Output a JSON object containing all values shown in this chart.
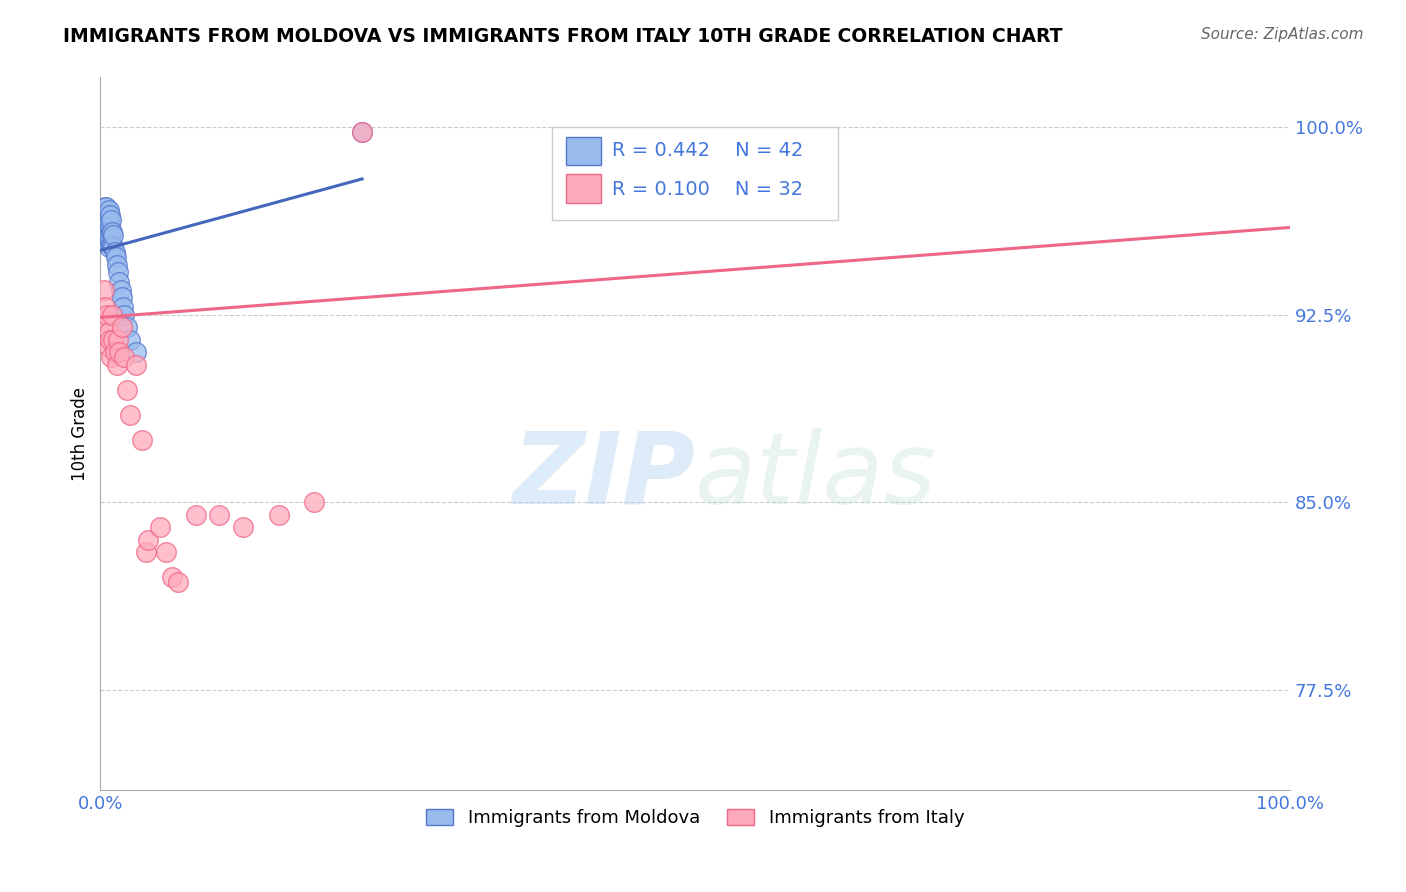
{
  "title": "IMMIGRANTS FROM MOLDOVA VS IMMIGRANTS FROM ITALY 10TH GRADE CORRELATION CHART",
  "source": "Source: ZipAtlas.com",
  "ylabel": "10th Grade",
  "xlim": [
    0.0,
    1.0
  ],
  "ylim": [
    0.735,
    1.02
  ],
  "yticks": [
    0.775,
    0.85,
    0.925,
    1.0
  ],
  "ytick_labels": [
    "77.5%",
    "85.0%",
    "92.5%",
    "100.0%"
  ],
  "legend_r_moldova": "R = 0.442",
  "legend_n_moldova": "N = 42",
  "legend_r_italy": "R = 0.100",
  "legend_n_italy": "N = 32",
  "legend_label_moldova": "Immigrants from Moldova",
  "legend_label_italy": "Immigrants from Italy",
  "color_moldova": "#99BBEE",
  "color_italy": "#FFAABB",
  "color_moldova_edge": "#5577CC",
  "color_italy_edge": "#EE6688",
  "color_moldova_line": "#4466BB",
  "color_italy_line": "#EE6688",
  "watermark_zip": "ZIP",
  "watermark_atlas": "atlas",
  "tick_color": "#4477DD",
  "moldova_x": [
    0.002,
    0.002,
    0.003,
    0.003,
    0.003,
    0.004,
    0.004,
    0.004,
    0.005,
    0.005,
    0.005,
    0.005,
    0.006,
    0.006,
    0.006,
    0.007,
    0.007,
    0.007,
    0.007,
    0.008,
    0.008,
    0.008,
    0.009,
    0.009,
    0.009,
    0.01,
    0.01,
    0.011,
    0.011,
    0.012,
    0.013,
    0.014,
    0.015,
    0.016,
    0.017,
    0.018,
    0.019,
    0.02,
    0.022,
    0.025,
    0.03,
    0.22
  ],
  "moldova_y": [
    0.96,
    0.965,
    0.955,
    0.96,
    0.965,
    0.957,
    0.962,
    0.968,
    0.955,
    0.96,
    0.963,
    0.968,
    0.955,
    0.96,
    0.965,
    0.952,
    0.957,
    0.962,
    0.967,
    0.955,
    0.96,
    0.965,
    0.953,
    0.958,
    0.963,
    0.953,
    0.958,
    0.952,
    0.957,
    0.95,
    0.948,
    0.945,
    0.942,
    0.938,
    0.935,
    0.932,
    0.928,
    0.925,
    0.92,
    0.915,
    0.91,
    0.998
  ],
  "italy_x": [
    0.003,
    0.004,
    0.005,
    0.006,
    0.007,
    0.007,
    0.008,
    0.009,
    0.01,
    0.011,
    0.012,
    0.014,
    0.015,
    0.016,
    0.018,
    0.02,
    0.022,
    0.025,
    0.03,
    0.035,
    0.038,
    0.04,
    0.05,
    0.055,
    0.06,
    0.065,
    0.08,
    0.1,
    0.12,
    0.15,
    0.18,
    0.22
  ],
  "italy_y": [
    0.935,
    0.928,
    0.922,
    0.925,
    0.918,
    0.912,
    0.915,
    0.908,
    0.925,
    0.915,
    0.91,
    0.905,
    0.915,
    0.91,
    0.92,
    0.908,
    0.895,
    0.885,
    0.905,
    0.875,
    0.83,
    0.835,
    0.84,
    0.83,
    0.82,
    0.818,
    0.845,
    0.845,
    0.84,
    0.845,
    0.85,
    0.998
  ]
}
